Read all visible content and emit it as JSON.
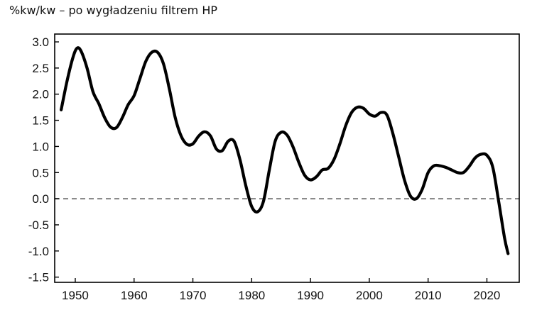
{
  "chart_data": {
    "type": "line",
    "title": "",
    "ylabel": "%kw/kw – po wygładzeniu filtrem HP",
    "xlabel": "",
    "xlim": [
      1946.5,
      2025.5
    ],
    "ylim": [
      -1.6,
      3.15
    ],
    "x_ticks": [
      1950,
      1960,
      1970,
      1980,
      1990,
      2000,
      2010,
      2020
    ],
    "y_ticks": [
      3.0,
      2.5,
      2.0,
      1.5,
      1.0,
      0.5,
      0.0,
      -0.5,
      -1.0,
      -1.5
    ],
    "y_tick_labels": [
      "3.0",
      "2.5",
      "2.0",
      "1.5",
      "1.0",
      "0.5",
      "0.0",
      "-0.5",
      "-1.0",
      "-1.5"
    ],
    "reference_line": {
      "y": 0.0,
      "style": "dashed",
      "color": "#808080"
    },
    "series": [
      {
        "color": "#000000",
        "points": [
          [
            1947.6,
            1.7
          ],
          [
            1948.6,
            2.25
          ],
          [
            1949.6,
            2.7
          ],
          [
            1950.3,
            2.88
          ],
          [
            1951.0,
            2.82
          ],
          [
            1952.0,
            2.5
          ],
          [
            1953.0,
            2.05
          ],
          [
            1954.0,
            1.82
          ],
          [
            1955.0,
            1.55
          ],
          [
            1956.0,
            1.37
          ],
          [
            1957.0,
            1.36
          ],
          [
            1958.0,
            1.55
          ],
          [
            1959.0,
            1.8
          ],
          [
            1960.0,
            1.97
          ],
          [
            1961.0,
            2.3
          ],
          [
            1962.0,
            2.63
          ],
          [
            1963.0,
            2.8
          ],
          [
            1964.0,
            2.8
          ],
          [
            1965.0,
            2.58
          ],
          [
            1966.0,
            2.1
          ],
          [
            1967.0,
            1.55
          ],
          [
            1968.0,
            1.2
          ],
          [
            1969.0,
            1.04
          ],
          [
            1970.0,
            1.05
          ],
          [
            1971.0,
            1.2
          ],
          [
            1972.0,
            1.28
          ],
          [
            1973.0,
            1.2
          ],
          [
            1974.0,
            0.95
          ],
          [
            1975.0,
            0.92
          ],
          [
            1976.0,
            1.1
          ],
          [
            1977.0,
            1.1
          ],
          [
            1978.0,
            0.75
          ],
          [
            1979.0,
            0.25
          ],
          [
            1980.0,
            -0.15
          ],
          [
            1981.0,
            -0.25
          ],
          [
            1982.0,
            -0.05
          ],
          [
            1983.0,
            0.55
          ],
          [
            1984.0,
            1.1
          ],
          [
            1985.0,
            1.27
          ],
          [
            1986.0,
            1.22
          ],
          [
            1987.0,
            1.0
          ],
          [
            1988.0,
            0.7
          ],
          [
            1989.0,
            0.45
          ],
          [
            1990.0,
            0.36
          ],
          [
            1991.0,
            0.42
          ],
          [
            1992.0,
            0.55
          ],
          [
            1993.0,
            0.58
          ],
          [
            1994.0,
            0.75
          ],
          [
            1995.0,
            1.05
          ],
          [
            1996.0,
            1.4
          ],
          [
            1997.0,
            1.65
          ],
          [
            1998.0,
            1.75
          ],
          [
            1999.0,
            1.73
          ],
          [
            2000.0,
            1.62
          ],
          [
            2001.0,
            1.58
          ],
          [
            2002.0,
            1.65
          ],
          [
            2003.0,
            1.6
          ],
          [
            2004.0,
            1.25
          ],
          [
            2005.0,
            0.8
          ],
          [
            2006.0,
            0.35
          ],
          [
            2007.0,
            0.05
          ],
          [
            2008.0,
            0.0
          ],
          [
            2009.0,
            0.18
          ],
          [
            2010.0,
            0.5
          ],
          [
            2011.0,
            0.63
          ],
          [
            2012.0,
            0.63
          ],
          [
            2013.0,
            0.6
          ],
          [
            2014.0,
            0.55
          ],
          [
            2015.0,
            0.5
          ],
          [
            2016.0,
            0.5
          ],
          [
            2017.0,
            0.62
          ],
          [
            2018.0,
            0.78
          ],
          [
            2019.0,
            0.85
          ],
          [
            2020.0,
            0.83
          ],
          [
            2021.0,
            0.6
          ],
          [
            2022.0,
            -0.05
          ],
          [
            2023.0,
            -0.75
          ],
          [
            2023.6,
            -1.05
          ]
        ]
      }
    ],
    "grid": false,
    "legend": "none"
  }
}
